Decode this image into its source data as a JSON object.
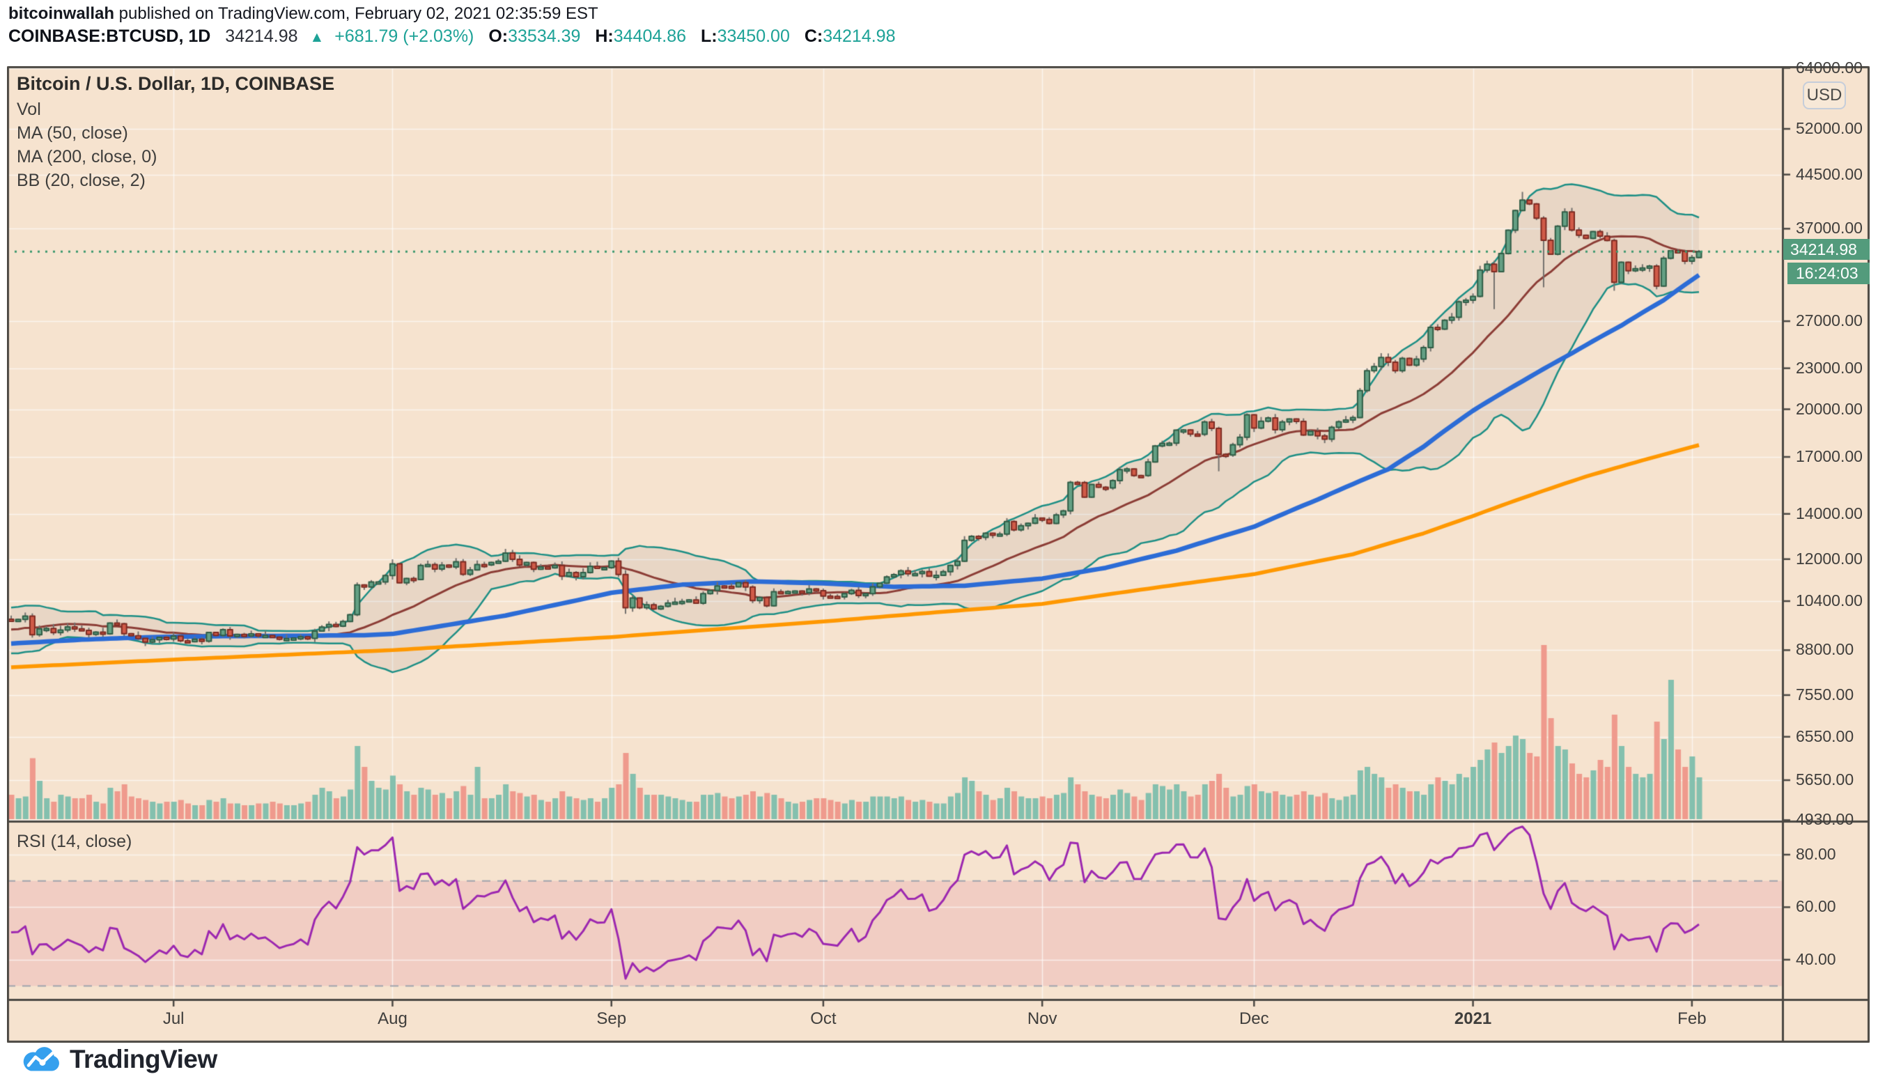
{
  "header": {
    "author": "bitcoinwallah",
    "published": " published on TradingView.com, February 02, 2021 02:35:59 EST",
    "symbol": "COINBASE:BTCUSD, 1D",
    "last": "34214.98",
    "direction": "▲",
    "change": "+681.79 (+2.03%)",
    "o_label": "O:",
    "o": "33534.39",
    "h_label": "H:",
    "h": "34404.86",
    "l_label": "L:",
    "l": "33450.00",
    "c_label": "C:",
    "c": "34214.98"
  },
  "legend": {
    "title": "Bitcoin / U.S. Dollar, 1D, COINBASE",
    "vol": "Vol",
    "ma50": "MA (50, close)",
    "ma200": "MA (200, close, 0)",
    "bb": "BB (20, close, 2)"
  },
  "rsi_pane": {
    "label": "RSI (14, close)"
  },
  "axis": {
    "currency_button": "USD",
    "price_label": "34214.98",
    "countdown": "16:24:03"
  },
  "footer": {
    "brand": "TradingView"
  },
  "colors": {
    "bg": "#f6e3cf",
    "grid": "rgba(255,255,255,0.65)",
    "border": "#4b4843",
    "up_body": "#64a084",
    "up_border": "#2f5d46",
    "down_body": "#d05b48",
    "down_border": "#7e2b22",
    "wick": "#73716e",
    "ma50": "#2c6cd6",
    "ma200": "#ff9800",
    "bb_line": "#1d8f85",
    "bb_mid": "#8c3d36",
    "bb_fill": "rgba(105,105,115,0.10)",
    "vol_up": "#84c0ae",
    "vol_down": "#ef9a8d",
    "rsi": "#9c27b0",
    "rsi_band_fill": "rgba(208,61,119,0.13)",
    "rsi_band_line": "#a0a3ad",
    "close_line": "#3e9970",
    "label_bg": "#539b7c",
    "axis_text": "#3f3e3c"
  },
  "chart_data": {
    "type": "candlestick",
    "symbol": "BTCUSD",
    "interval": "1D",
    "start_date": "2020-06-08",
    "end_date": "2021-02-02",
    "scale": "log",
    "closes": [
      9764,
      9772,
      9884,
      9273,
      9465,
      9473,
      9342,
      9426,
      9525,
      9465,
      9411,
      9288,
      9359,
      9303,
      9648,
      9629,
      9307,
      9241,
      9162,
      9045,
      9116,
      9190,
      9138,
      9232,
      9086,
      9058,
      9135,
      9073,
      9344,
      9252,
      9436,
      9235,
      9287,
      9234,
      9303,
      9242,
      9255,
      9197,
      9133,
      9155,
      9170,
      9208,
      9160,
      9390,
      9518,
      9603,
      9550,
      9700,
      9931,
      10990,
      10912,
      11100,
      11100,
      11350,
      11810,
      11071,
      11237,
      11191,
      11747,
      11779,
      11601,
      11758,
      11681,
      11892,
      11392,
      11564,
      11780,
      11768,
      11865,
      11911,
      12254,
      11991,
      11758,
      11864,
      11592,
      11681,
      11649,
      11744,
      11322,
      11465,
      11300,
      11465,
      11708,
      11649,
      11655,
      11924,
      11388,
      10169,
      10511,
      10169,
      10274,
      10126,
      10219,
      10335,
      10363,
      10390,
      10441,
      10328,
      10671,
      10784,
      10948,
      10935,
      10920,
      11077,
      10913,
      10417,
      10529,
      10236,
      10741,
      10696,
      10744,
      10764,
      10700,
      10840,
      10776,
      10580,
      10566,
      10549,
      10670,
      10790,
      10600,
      10668,
      10920,
      11057,
      11294,
      11380,
      11528,
      11418,
      11420,
      11502,
      11320,
      11358,
      11500,
      11744,
      11913,
      12796,
      12968,
      12926,
      13108,
      13028,
      13068,
      13640,
      13260,
      13450,
      13560,
      13800,
      13740,
      13550,
      13950,
      14140,
      15590,
      15580,
      14823,
      15475,
      15328,
      15297,
      15684,
      16276,
      16317,
      15957,
      15955,
      16713,
      17645,
      17804,
      17817,
      18621,
      18642,
      18370,
      18365,
      19157,
      18732,
      17150,
      17108,
      17717,
      18177,
      19625,
      18764,
      19204,
      19421,
      18650,
      19154,
      19345,
      19191,
      18321,
      18553,
      18264,
      18058,
      18808,
      19167,
      19275,
      19439,
      21310,
      22805,
      23137,
      23861,
      23477,
      22803,
      23783,
      23241,
      23735,
      24677,
      26437,
      26272,
      27084,
      27362,
      28841,
      29002,
      29374,
      32128,
      32782,
      31971,
      33992,
      36824,
      39371,
      40797,
      40254,
      38356,
      35566,
      33922,
      37316,
      39187,
      36825,
      36178,
      35791,
      36630,
      36069,
      35547,
      30825,
      33005,
      32067,
      32289,
      32366,
      32569,
      30432,
      33466,
      34316,
      34269,
      33114,
      33533,
      34215
    ],
    "prehistory_closes": [
      9800,
      9300,
      9380,
      9670,
      9730,
      9780,
      9510,
      9060,
      9170,
      9150,
      8720,
      8900,
      8840,
      9200,
      9580,
      9500,
      9450,
      9700,
      10200,
      9520,
      9660,
      9800,
      9620,
      9670,
      9780
    ],
    "volumes_rel": [
      14,
      12,
      13,
      35,
      22,
      12,
      10,
      14,
      13,
      12,
      12,
      14,
      10,
      9,
      18,
      16,
      20,
      13,
      12,
      11,
      10,
      9,
      10,
      10,
      11,
      9,
      8,
      8,
      11,
      10,
      12,
      9,
      9,
      8,
      8,
      9,
      9,
      10,
      9,
      8,
      8,
      9,
      10,
      14,
      18,
      16,
      12,
      13,
      17,
      42,
      30,
      22,
      18,
      17,
      25,
      20,
      16,
      14,
      18,
      17,
      14,
      15,
      12,
      16,
      19,
      14,
      30,
      12,
      12,
      14,
      20,
      16,
      15,
      13,
      14,
      11,
      10,
      12,
      16,
      13,
      12,
      11,
      12,
      10,
      12,
      18,
      20,
      38,
      26,
      18,
      14,
      14,
      14,
      13,
      12,
      11,
      10,
      10,
      14,
      14,
      15,
      13,
      12,
      13,
      14,
      16,
      13,
      15,
      14,
      12,
      10,
      9,
      10,
      11,
      12,
      12,
      11,
      10,
      9,
      11,
      10,
      10,
      13,
      13,
      13,
      12,
      13,
      11,
      10,
      11,
      10,
      9,
      9,
      13,
      15,
      24,
      22,
      16,
      14,
      11,
      12,
      18,
      16,
      13,
      12,
      12,
      13,
      12,
      14,
      15,
      24,
      20,
      16,
      14,
      13,
      12,
      14,
      17,
      15,
      13,
      11,
      15,
      20,
      19,
      17,
      20,
      16,
      13,
      14,
      20,
      22,
      26,
      18,
      13,
      14,
      19,
      20,
      16,
      15,
      16,
      14,
      13,
      14,
      16,
      14,
      13,
      15,
      12,
      11,
      13,
      14,
      28,
      30,
      26,
      24,
      18,
      20,
      18,
      16,
      16,
      14,
      20,
      24,
      22,
      20,
      26,
      24,
      30,
      34,
      40,
      44,
      38,
      42,
      48,
      46,
      38,
      36,
      100,
      58,
      42,
      40,
      32,
      26,
      24,
      28,
      34,
      30,
      60,
      42,
      30,
      26,
      24,
      26,
      56,
      46,
      80,
      40,
      30,
      36,
      24
    ],
    "wick_overrides": {
      "87": {
        "low": 9960
      },
      "171": {
        "low": 16188
      },
      "210": {
        "low": 28130
      },
      "214": {
        "high": 41950
      },
      "217": {
        "low": 30305
      },
      "227": {
        "low": 29950
      },
      "239": {
        "open": 33534.39,
        "high": 34404.86,
        "low": 33450.0,
        "close": 34214.98
      }
    },
    "price_ticks": [
      {
        "label": "64000.00",
        "value": 64000
      },
      {
        "label": "52000.00",
        "value": 52000
      },
      {
        "label": "44500.00",
        "value": 44500
      },
      {
        "label": "37000.00",
        "value": 37000
      },
      {
        "label": "27000.00",
        "value": 27000
      },
      {
        "label": "23000.00",
        "value": 23000
      },
      {
        "label": "20000.00",
        "value": 20000
      },
      {
        "label": "17000.00",
        "value": 17000
      },
      {
        "label": "14000.00",
        "value": 14000
      },
      {
        "label": "12000.00",
        "value": 12000
      },
      {
        "label": "10400.00",
        "value": 10400
      },
      {
        "label": "8800.00",
        "value": 8800
      },
      {
        "label": "7550.00",
        "value": 7550
      },
      {
        "label": "6550.00",
        "value": 6550
      },
      {
        "label": "5650.00",
        "value": 5650
      },
      {
        "label": "4930.00",
        "value": 4930
      }
    ],
    "rsi_ticks": [
      {
        "label": "80.00",
        "value": 80
      },
      {
        "label": "60.00",
        "value": 60
      },
      {
        "label": "40.00",
        "value": 40
      }
    ],
    "rsi_bands": [
      70,
      30
    ],
    "x_ticks": [
      {
        "label": "Jul",
        "day_index": 23,
        "bold": false
      },
      {
        "label": "Aug",
        "day_index": 54,
        "bold": false
      },
      {
        "label": "Sep",
        "day_index": 85,
        "bold": false
      },
      {
        "label": "Oct",
        "day_index": 115,
        "bold": false
      },
      {
        "label": "Nov",
        "day_index": 146,
        "bold": false
      },
      {
        "label": "Dec",
        "day_index": 176,
        "bold": false
      },
      {
        "label": "2021",
        "day_index": 207,
        "bold": true
      },
      {
        "label": "Feb",
        "day_index": 238,
        "bold": false
      }
    ],
    "current_close": 34214.98,
    "indicators": {
      "bb": {
        "period": 20,
        "mult": 2
      },
      "rsi_period": 14,
      "ma50_anchors": [
        [
          0,
          9000
        ],
        [
          10,
          9120
        ],
        [
          20,
          9200
        ],
        [
          30,
          9230
        ],
        [
          40,
          9240
        ],
        [
          50,
          9260
        ],
        [
          54,
          9300
        ],
        [
          60,
          9520
        ],
        [
          70,
          9900
        ],
        [
          80,
          10420
        ],
        [
          85,
          10700
        ],
        [
          95,
          11000
        ],
        [
          105,
          11120
        ],
        [
          115,
          11050
        ],
        [
          125,
          10920
        ],
        [
          135,
          10960
        ],
        [
          146,
          11230
        ],
        [
          155,
          11650
        ],
        [
          165,
          12350
        ],
        [
          176,
          13400
        ],
        [
          185,
          14700
        ],
        [
          195,
          16300
        ],
        [
          200,
          17600
        ],
        [
          207,
          19900
        ],
        [
          214,
          22000
        ],
        [
          221,
          24200
        ],
        [
          228,
          26600
        ],
        [
          234,
          29000
        ],
        [
          239,
          31600
        ]
      ],
      "ma200_anchors": [
        [
          0,
          8300
        ],
        [
          23,
          8520
        ],
        [
          54,
          8800
        ],
        [
          85,
          9200
        ],
        [
          115,
          9700
        ],
        [
          146,
          10300
        ],
        [
          176,
          11400
        ],
        [
          190,
          12200
        ],
        [
          200,
          13100
        ],
        [
          207,
          13900
        ],
        [
          215,
          14900
        ],
        [
          223,
          15900
        ],
        [
          231,
          16800
        ],
        [
          239,
          17700
        ]
      ]
    }
  }
}
